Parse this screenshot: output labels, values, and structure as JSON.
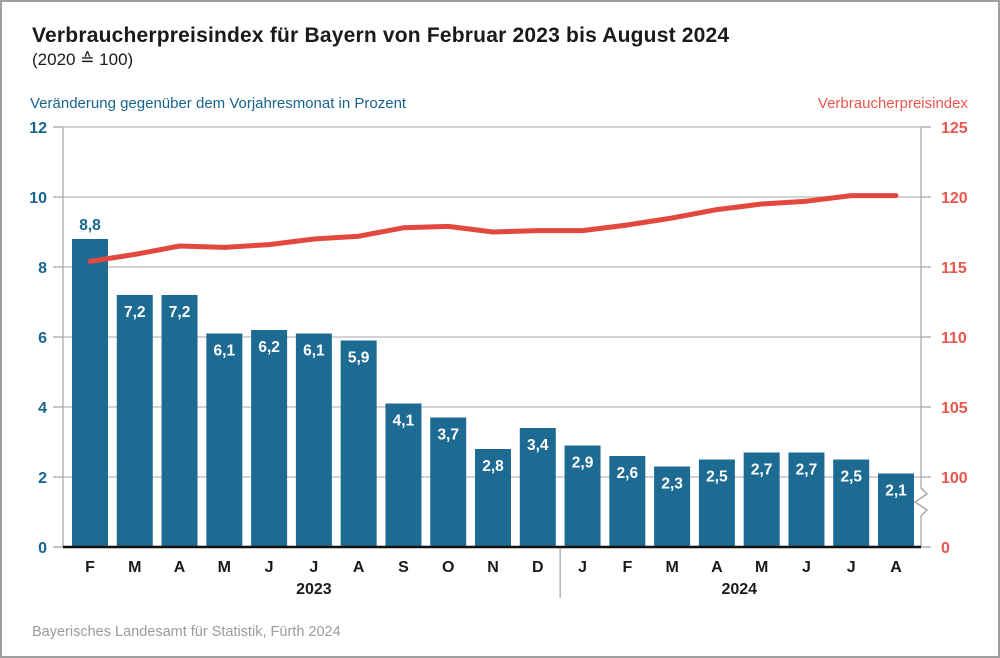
{
  "title": "Verbraucherpreisindex für Bayern von Februar 2023 bis August 2024",
  "subtitle": "(2020 ≙ 100)",
  "left_axis_title": "Veränderung gegenüber dem Vorjahresmonat in Prozent",
  "right_axis_title": "Verbraucherpreisindex",
  "source_note": "Bayerisches Landesamt für Statistik, Fürth 2024",
  "colors": {
    "bar": "#1d6b93",
    "line": "#e2483d",
    "left_axis_text": "#17648f",
    "right_axis_text": "#e9564d",
    "grid": "#b9b9b9",
    "axis_gray": "#a8a8a8",
    "baseline_black": "#111111",
    "bar_label_inside": "#ffffff",
    "month_text": "#1a1a1a",
    "footer_text": "#9b9b9b",
    "border": "#9e9e9e"
  },
  "chart_data": {
    "type": "combo",
    "categories": [
      "F",
      "M",
      "A",
      "M",
      "J",
      "J",
      "A",
      "S",
      "O",
      "N",
      "D",
      "J",
      "F",
      "M",
      "A",
      "M",
      "J",
      "J",
      "A"
    ],
    "year_groups": [
      {
        "label": "2023",
        "from": 0,
        "to": 10
      },
      {
        "label": "2024",
        "from": 11,
        "to": 18
      }
    ],
    "series": [
      {
        "name": "Veränderung gegenüber dem Vorjahresmonat in Prozent",
        "type": "bar",
        "axis": "left",
        "values": [
          8.8,
          7.2,
          7.2,
          6.1,
          6.2,
          6.1,
          5.9,
          4.1,
          3.7,
          2.8,
          3.4,
          2.9,
          2.6,
          2.3,
          2.5,
          2.7,
          2.7,
          2.5,
          2.1
        ],
        "value_labels": [
          "8,8",
          "7,2",
          "7,2",
          "6,1",
          "6,2",
          "6,1",
          "5,9",
          "4,1",
          "3,7",
          "2,8",
          "3,4",
          "2,9",
          "2,6",
          "2,3",
          "2,5",
          "2,7",
          "2,7",
          "2,5",
          "2,1"
        ]
      },
      {
        "name": "Verbraucherpreisindex",
        "type": "line",
        "axis": "right",
        "values": [
          115.4,
          115.9,
          116.5,
          116.4,
          116.6,
          117.0,
          117.2,
          117.8,
          117.9,
          117.5,
          117.6,
          117.6,
          118.0,
          118.5,
          119.1,
          119.5,
          119.7,
          120.1,
          120.1
        ]
      }
    ],
    "left_axis": {
      "min": 0,
      "max": 12,
      "ticks": [
        0,
        2,
        4,
        6,
        8,
        10,
        12
      ]
    },
    "right_axis": {
      "ticks": [
        0,
        100,
        105,
        110,
        115,
        120,
        125
      ],
      "break_between": [
        0,
        100
      ]
    },
    "grid": true,
    "legend_position": "none"
  }
}
